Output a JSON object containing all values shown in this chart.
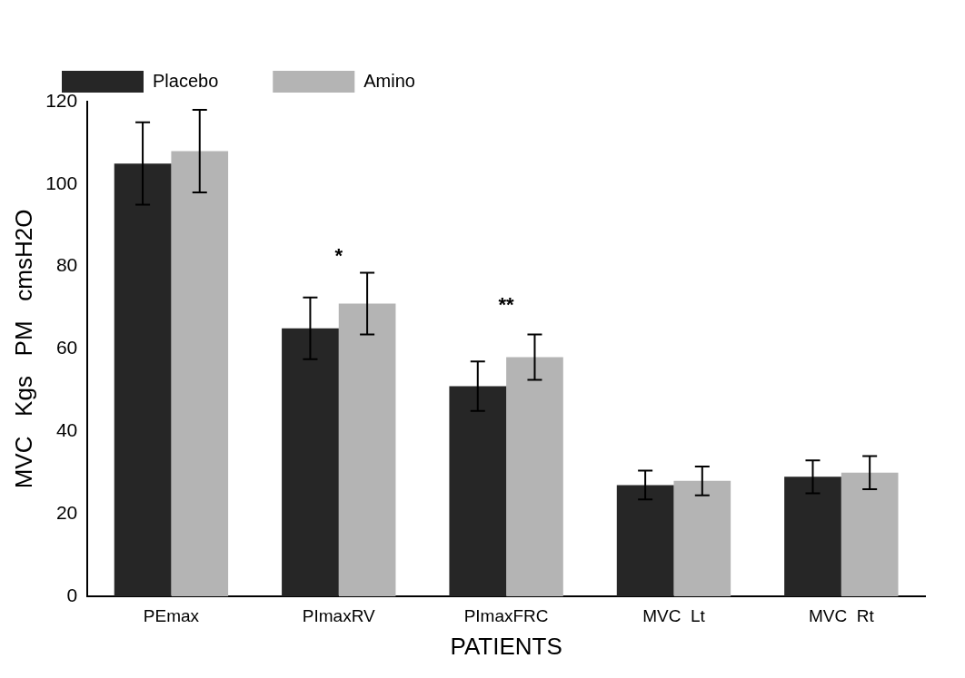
{
  "chart_data": {
    "type": "bar",
    "xlabel": "PATIENTS",
    "ylabel": "MVC   Kgs   PM   cmsH2O",
    "categories": [
      "PEmax",
      "PImaxRV",
      "PImaxFRC",
      "MVC  Lt",
      "MVC  Rt"
    ],
    "series": [
      {
        "name": "Placebo",
        "color": "#262626",
        "values": [
          105,
          65,
          51,
          27,
          29
        ],
        "errors": [
          10,
          7.5,
          6,
          3.5,
          4
        ]
      },
      {
        "name": "Amino",
        "color": "#b4b4b4",
        "values": [
          108,
          71,
          58,
          28,
          30
        ],
        "errors": [
          10,
          7.5,
          5.5,
          3.5,
          4
        ]
      }
    ],
    "ylim": [
      0,
      120
    ],
    "yticks": [
      0,
      20,
      40,
      60,
      80,
      100,
      120
    ],
    "grid": false,
    "legend": "top",
    "annotations": [
      "*",
      "**"
    ]
  }
}
